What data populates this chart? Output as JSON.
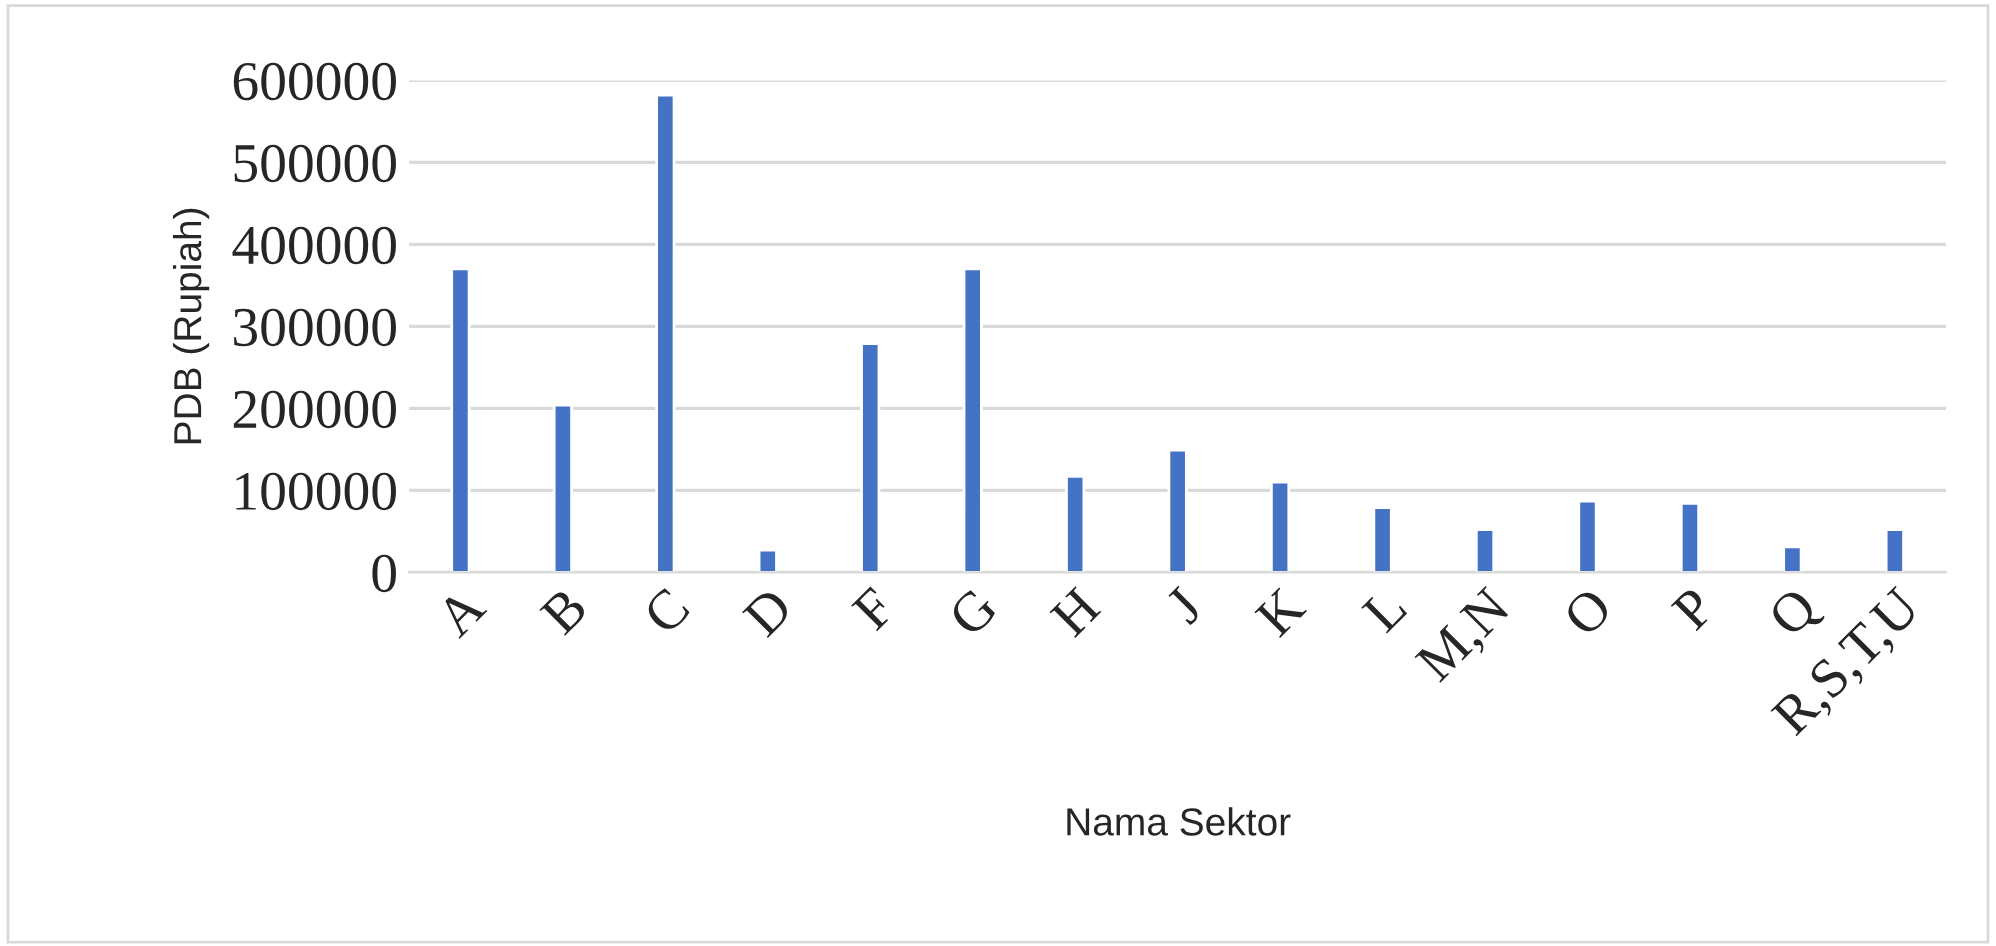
{
  "chart_data": {
    "type": "bar",
    "xlabel": "Nama Sektor",
    "ylabel": "PDB (Rupiah)",
    "categories": [
      "A",
      "B",
      "C",
      "D",
      "F",
      "G",
      "H",
      "J",
      "K",
      "L",
      "M,N",
      "O",
      "P",
      "Q",
      "R,S,T,U"
    ],
    "values": [
      370000,
      204000,
      582000,
      27000,
      279000,
      370000,
      117000,
      149000,
      110000,
      79000,
      52000,
      87000,
      84000,
      31000,
      52000
    ],
    "color": "#4472c4",
    "ylim": [
      0,
      600000
    ],
    "yticks": [
      0,
      100000,
      200000,
      300000,
      400000,
      500000,
      600000
    ],
    "grid": "y"
  }
}
